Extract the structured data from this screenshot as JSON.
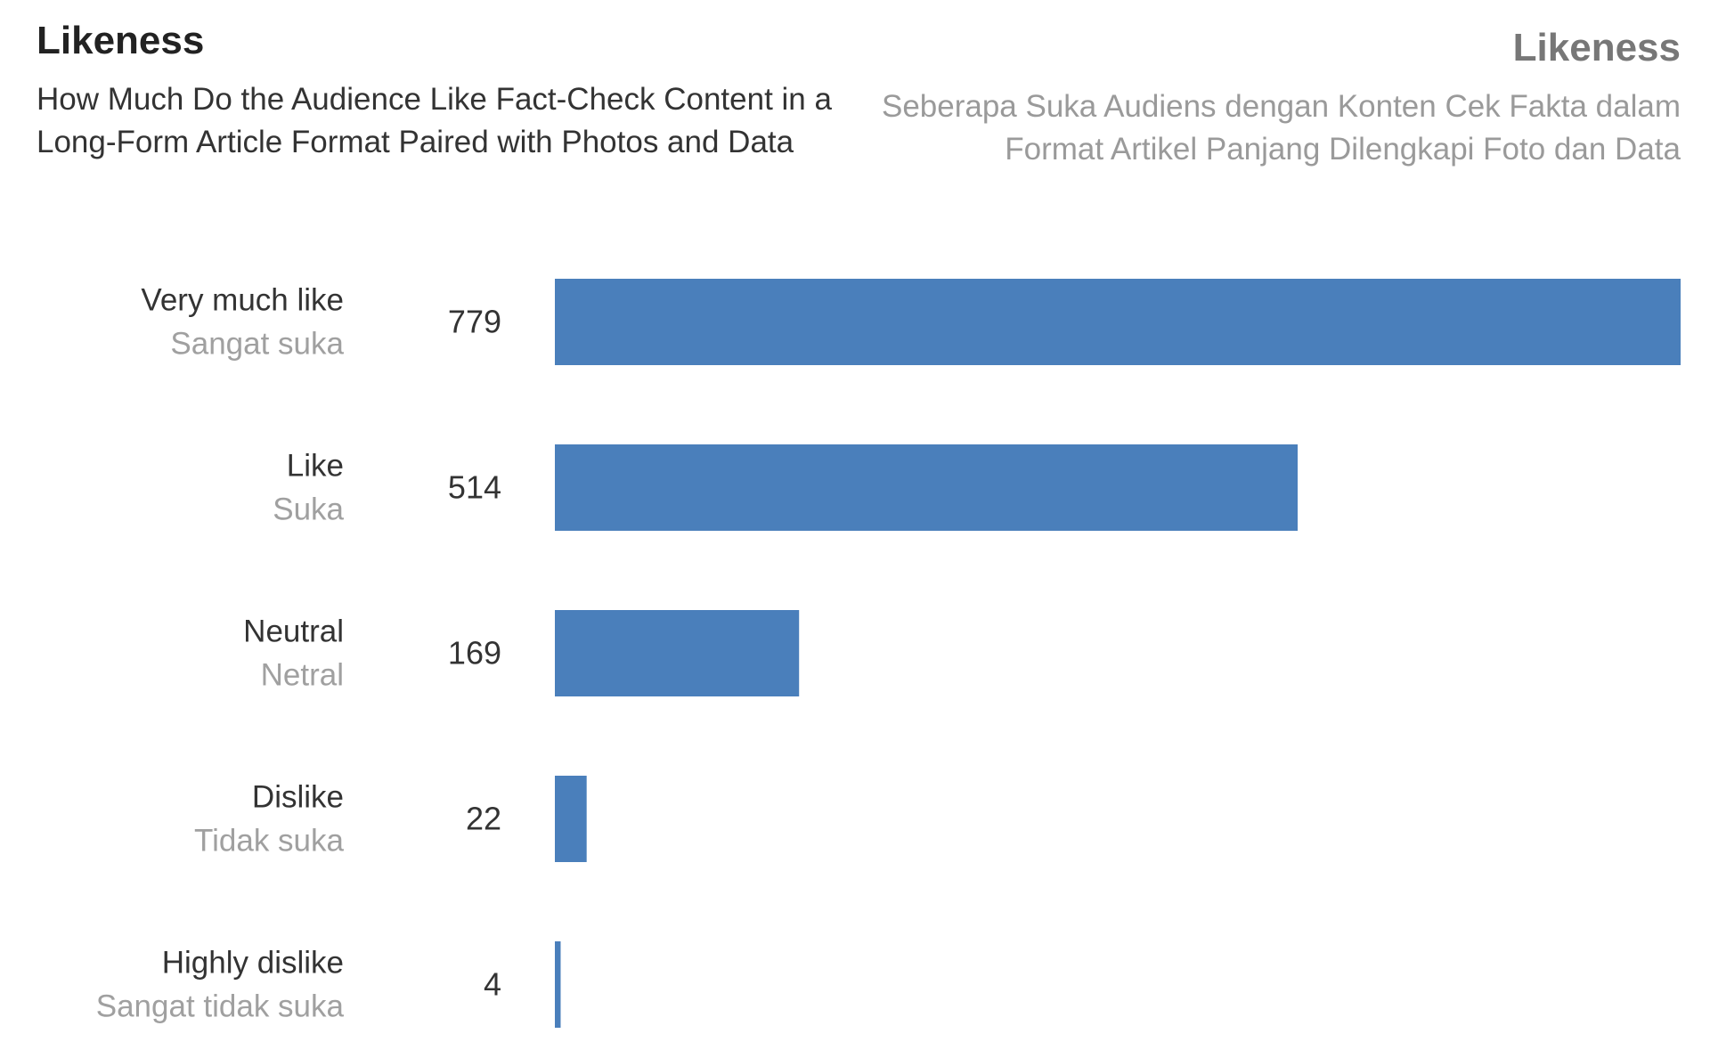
{
  "chart_data": {
    "type": "bar",
    "orientation": "horizontal",
    "title": "Likeness",
    "subtitle": "How Much Do the Audience Like Fact-Check Content in a Long-Form Article Format Paired with Photos and Data",
    "title_id": "Likeness",
    "subtitle_id": "Seberapa Suka Audiens dengan Konten Cek Fakta dalam Format Artikel Panjang Dilengkapi Foto dan Data",
    "categories": [
      "Very much like",
      "Like",
      "Neutral",
      "Dislike",
      "Highly dislike"
    ],
    "categories_id": [
      "Sangat suka",
      "Suka",
      "Netral",
      "Tidak suka",
      "Sangat tidak suka"
    ],
    "values": [
      779,
      514,
      169,
      22,
      4
    ],
    "xlim": [
      0,
      779
    ],
    "grid": false,
    "bar_color": "#4a7fbb"
  }
}
